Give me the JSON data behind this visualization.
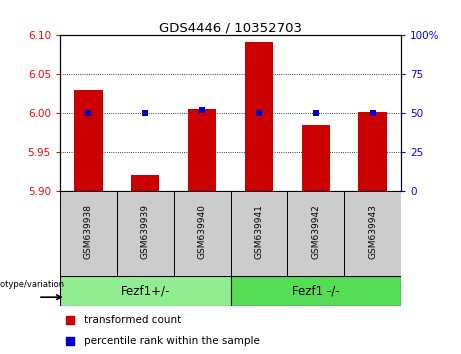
{
  "title": "GDS4446 / 10352703",
  "categories": [
    "GSM639938",
    "GSM639939",
    "GSM639940",
    "GSM639941",
    "GSM639942",
    "GSM639943"
  ],
  "red_values": [
    6.03,
    5.921,
    6.005,
    6.092,
    5.985,
    6.002
  ],
  "blue_values": [
    50,
    50,
    52,
    50,
    50,
    50
  ],
  "ylim_left": [
    5.9,
    6.1
  ],
  "ylim_right": [
    0,
    100
  ],
  "yticks_left": [
    5.9,
    5.95,
    6.0,
    6.05,
    6.1
  ],
  "yticks_right": [
    0,
    25,
    50,
    75,
    100
  ],
  "grid_values": [
    5.95,
    6.0,
    6.05
  ],
  "group1": {
    "label": "Fezf1+/-",
    "indices": [
      0,
      1,
      2
    ]
  },
  "group2": {
    "label": "Fezf1 -/-",
    "indices": [
      3,
      4,
      5
    ]
  },
  "genotype_label": "genotype/variation",
  "legend1": "transformed count",
  "legend2": "percentile rank within the sample",
  "bar_color": "#cc0000",
  "dot_color": "#0000cc",
  "group1_color": "#90ee90",
  "group2_color": "#55dd55",
  "sample_box_color": "#cccccc",
  "bar_width": 0.5,
  "dot_size": 25
}
